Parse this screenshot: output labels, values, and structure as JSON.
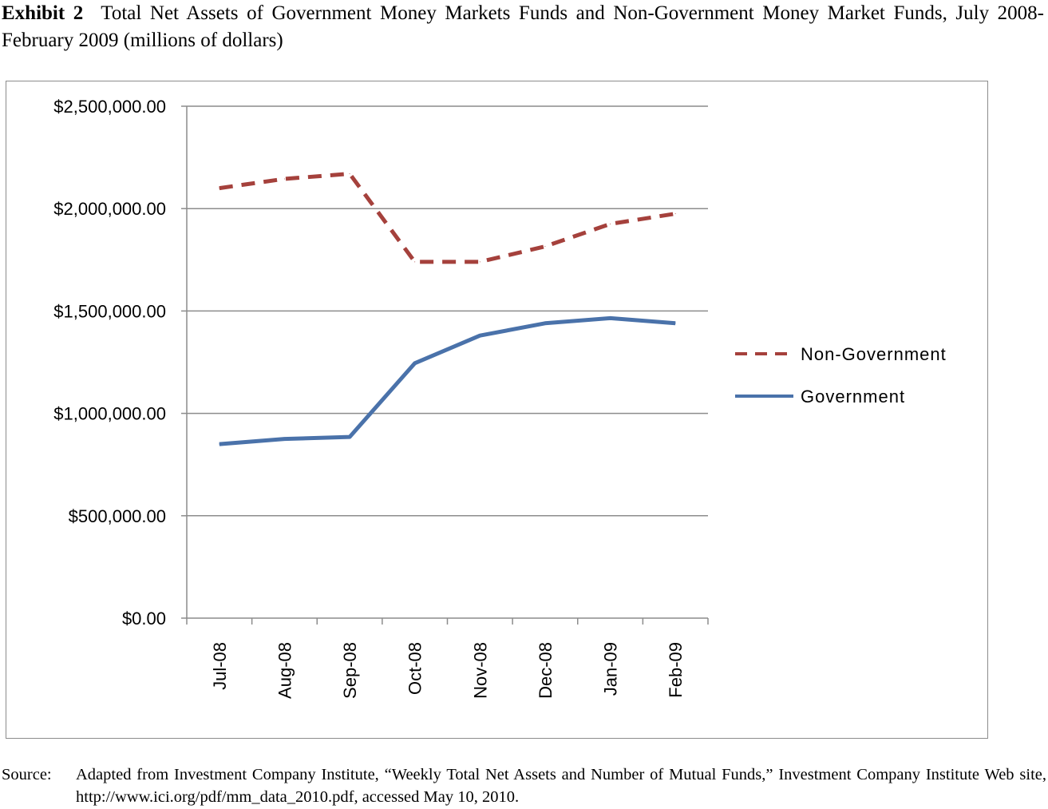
{
  "figure": {
    "exhibit_label": "Exhibit 2",
    "title": "Total Net Assets of Government Money Markets Funds and Non-Government Money Market Funds, July 2008-February 2009 (millions of dollars)",
    "source_label": "Source:",
    "source_text": "Adapted from Investment Company Institute, “Weekly Total Net Assets and Number of Mutual Funds,” Investment Company Institute Web site, http://www.ici.org/pdf/mm_data_2010.pdf, accessed May 10, 2010."
  },
  "chart_data": {
    "type": "line",
    "categories": [
      "Jul-08",
      "Aug-08",
      "Sep-08",
      "Oct-08",
      "Nov-08",
      "Dec-08",
      "Jan-09",
      "Feb-09"
    ],
    "series": [
      {
        "name": "Non-Government",
        "values": [
          2100000,
          2145000,
          2170000,
          1740000,
          1740000,
          1815000,
          1925000,
          1975000
        ],
        "color": "#a5413c",
        "style": "dashed"
      },
      {
        "name": "Government",
        "values": [
          850000,
          875000,
          885000,
          1245000,
          1380000,
          1440000,
          1465000,
          1440000
        ],
        "color": "#4a72aa",
        "style": "solid"
      }
    ],
    "ylim": [
      0,
      2500000
    ],
    "yticks": [
      0,
      500000,
      1000000,
      1500000,
      2000000,
      2500000
    ],
    "ytick_labels": [
      "$0.00",
      "$500,000.00",
      "$1,000,000.00",
      "$1,500,000.00",
      "$2,000,000.00",
      "$2,500,000.00"
    ],
    "xlabel": "",
    "ylabel": "",
    "grid": true,
    "legend_position": "right"
  }
}
